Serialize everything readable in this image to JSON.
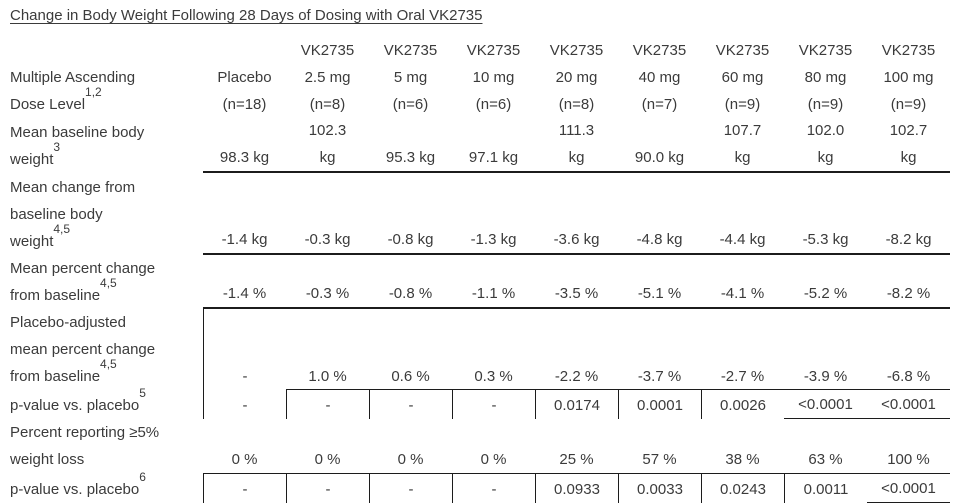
{
  "title": "Change in Body Weight Following 28 Days of Dosing with Oral VK2735",
  "chart_data": {
    "type": "table",
    "title": "Change in Body Weight Following 28 Days of Dosing with Oral VK2735",
    "row_header": {
      "lines": "Multiple Ascending\nDose Level",
      "sup": "1,2"
    },
    "column_headers": [
      {
        "brand": "",
        "dose": "Placebo",
        "n": "(n=18)"
      },
      {
        "brand": "VK2735",
        "dose": "2.5 mg",
        "n": "(n=8)"
      },
      {
        "brand": "VK2735",
        "dose": "5 mg",
        "n": "(n=6)"
      },
      {
        "brand": "VK2735",
        "dose": "10 mg",
        "n": "(n=6)"
      },
      {
        "brand": "VK2735",
        "dose": "20 mg",
        "n": "(n=8)"
      },
      {
        "brand": "VK2735",
        "dose": "40 mg",
        "n": "(n=7)"
      },
      {
        "brand": "VK2735",
        "dose": "60 mg",
        "n": "(n=9)"
      },
      {
        "brand": "VK2735",
        "dose": "80 mg",
        "n": "(n=9)"
      },
      {
        "brand": "VK2735",
        "dose": "100 mg",
        "n": "(n=9)"
      }
    ],
    "rows": [
      {
        "label": {
          "lines": "Mean baseline body\nweight",
          "sup": "3"
        },
        "values": [
          "98.3 kg",
          "102.3\nkg",
          "95.3 kg",
          "97.1 kg",
          "111.3\nkg",
          "90.0 kg",
          "107.7\nkg",
          "102.0\nkg",
          "102.7\nkg"
        ]
      },
      {
        "label": {
          "lines": "Mean change from\nbaseline body\nweight",
          "sup": "4,5"
        },
        "values": [
          "-1.4 kg",
          "-0.3 kg",
          "-0.8 kg",
          "-1.3 kg",
          "-3.6 kg",
          "-4.8 kg",
          "-4.4 kg",
          "-5.3 kg",
          "-8.2 kg"
        ]
      },
      {
        "label": {
          "lines": "Mean percent change\nfrom baseline",
          "sup": "4,5"
        },
        "values": [
          "-1.4 %",
          "-0.3 %",
          "-0.8 %",
          "-1.1 %",
          "-3.5 %",
          "-5.1 %",
          "-4.1 %",
          "-5.2 %",
          "-8.2 %"
        ]
      },
      {
        "label": {
          "lines": "Placebo-adjusted\nmean percent change\nfrom baseline",
          "sup": "4,5"
        },
        "values": [
          "-",
          "1.0 %",
          "0.6 %",
          "0.3 %",
          "-2.2 %",
          "-3.7 %",
          "-2.7 %",
          "-3.9 %",
          "-6.8 %"
        ]
      },
      {
        "label": {
          "lines": "p-value vs. placebo",
          "sup": "5"
        },
        "values": [
          "-",
          "-",
          "-",
          "-",
          "0.0174",
          "0.0001",
          "0.0026",
          "<0.0001",
          "<0.0001"
        ]
      },
      {
        "label": {
          "lines": "Percent reporting ≥5%\nweight loss",
          "sup": ""
        },
        "values": [
          "0 %",
          "0 %",
          "0 %",
          "0 %",
          "25 %",
          "57 %",
          "38 %",
          "63 %",
          "100 %"
        ]
      },
      {
        "label": {
          "lines": "p-value vs. placebo",
          "sup": "6"
        },
        "values": [
          "-",
          "-",
          "-",
          "-",
          "0.0933",
          "0.0033",
          "0.0243",
          "0.0011",
          "<0.0001"
        ]
      }
    ]
  }
}
